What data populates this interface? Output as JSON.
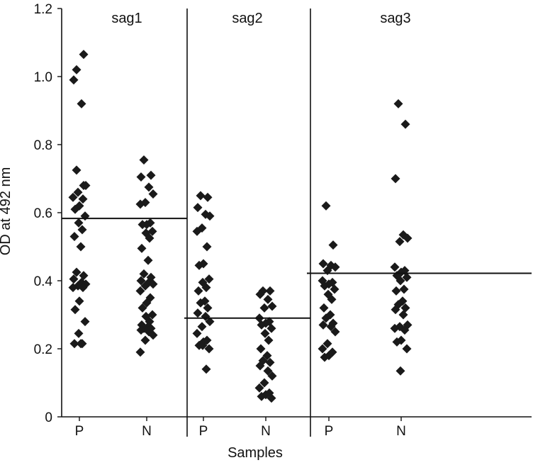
{
  "chart_data": {
    "type": "scatter",
    "title": "",
    "xlabel": "Samples",
    "ylabel": "OD at 492 nm",
    "ylim": [
      0,
      1.2
    ],
    "yticks": [
      {
        "value": 0,
        "label": "0"
      },
      {
        "value": 0.2,
        "label": "0.2"
      },
      {
        "value": 0.4,
        "label": "0.4"
      },
      {
        "value": 0.6,
        "label": "0.6"
      },
      {
        "value": 0.8,
        "label": "0.8"
      },
      {
        "value": 1.0,
        "label": "1.0"
      },
      {
        "value": 1.2,
        "label": "1.2"
      }
    ],
    "marker": "diamond",
    "marker_color": "#1a1a1a",
    "panels": [
      {
        "name": "sag1",
        "cutoff": 0.583,
        "groups": [
          {
            "label": "P",
            "values": [
              1.02,
              1.065,
              0.99,
              0.92,
              0.68,
              0.66,
              0.645,
              0.64,
              0.62,
              0.61,
              0.59,
              0.57,
              0.55,
              0.53,
              0.5,
              0.425,
              0.415,
              0.405,
              0.395,
              0.39,
              0.385,
              0.38,
              0.38,
              0.34,
              0.315,
              0.28,
              0.245,
              0.215,
              0.215,
              0.215,
              0.725,
              0.68
            ]
          },
          {
            "label": "N",
            "values": [
              0.755,
              0.71,
              0.705,
              0.675,
              0.655,
              0.63,
              0.625,
              0.57,
              0.565,
              0.565,
              0.545,
              0.54,
              0.525,
              0.495,
              0.46,
              0.42,
              0.41,
              0.4,
              0.395,
              0.39,
              0.385,
              0.37,
              0.35,
              0.335,
              0.32,
              0.3,
              0.295,
              0.28,
              0.27,
              0.265,
              0.26,
              0.26,
              0.255,
              0.25,
              0.24,
              0.225,
              0.19
            ]
          }
        ]
      },
      {
        "name": "sag2",
        "cutoff": 0.29,
        "groups": [
          {
            "label": "P",
            "values": [
              0.65,
              0.645,
              0.615,
              0.595,
              0.59,
              0.555,
              0.545,
              0.5,
              0.45,
              0.445,
              0.405,
              0.395,
              0.38,
              0.37,
              0.34,
              0.335,
              0.32,
              0.305,
              0.295,
              0.28,
              0.265,
              0.245,
              0.225,
              0.22,
              0.21,
              0.2,
              0.21,
              0.14
            ]
          },
          {
            "label": "N",
            "values": [
              0.37,
              0.37,
              0.36,
              0.345,
              0.325,
              0.32,
              0.29,
              0.28,
              0.275,
              0.27,
              0.26,
              0.245,
              0.225,
              0.2,
              0.18,
              0.165,
              0.16,
              0.15,
              0.135,
              0.12,
              0.1,
              0.085,
              0.07,
              0.065,
              0.06,
              0.055
            ]
          }
        ]
      },
      {
        "name": "sag3",
        "cutoff": 0.422,
        "groups": [
          {
            "label": "P",
            "values": [
              0.62,
              0.505,
              0.45,
              0.445,
              0.44,
              0.43,
              0.4,
              0.395,
              0.39,
              0.385,
              0.375,
              0.36,
              0.345,
              0.32,
              0.3,
              0.29,
              0.275,
              0.27,
              0.265,
              0.25,
              0.215,
              0.2,
              0.19,
              0.18,
              0.175
            ]
          },
          {
            "label": "N",
            "values": [
              0.92,
              0.86,
              0.7,
              0.535,
              0.525,
              0.515,
              0.44,
              0.43,
              0.425,
              0.415,
              0.41,
              0.4,
              0.375,
              0.37,
              0.34,
              0.33,
              0.32,
              0.315,
              0.3,
              0.27,
              0.265,
              0.26,
              0.255,
              0.225,
              0.22,
              0.2,
              0.135
            ]
          }
        ]
      }
    ]
  }
}
